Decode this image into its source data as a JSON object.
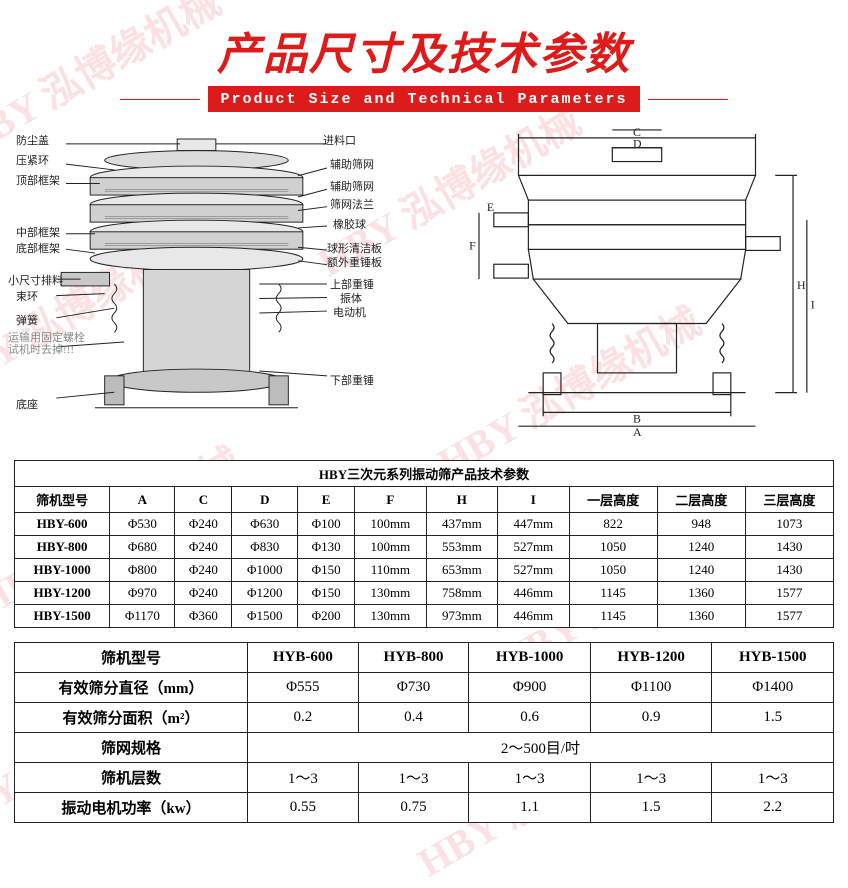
{
  "title": {
    "cn": "产品尺寸及技术参数",
    "en": "Product Size and Technical Parameters",
    "title_color": "#de1b1b",
    "title_fontsize_cn": 44,
    "title_fontsize_en": 15,
    "en_bg": "#de1b1b",
    "en_fg": "#ffffff"
  },
  "watermark": {
    "text": "泓博缘机械",
    "logo": "HBY",
    "color": "#e83c3c",
    "opacity": 0.15,
    "angle_deg": -30
  },
  "diagram_left": {
    "labels": {
      "l0": "防尘盖",
      "l1": "压紧环",
      "l2": "顶部框架",
      "l3": "中部框架",
      "l4": "底部框架",
      "l5": "小尺寸排料",
      "l6": "束环",
      "l7": "弹簧",
      "l8": "运输用固定螺栓\n试机时去掉!!!",
      "l9": "底座",
      "r0": "进料口",
      "r1": "辅助筛网",
      "r2": "辅助筛网",
      "r3": "筛网法兰",
      "r4": "橡胶球",
      "r5": "球形清洁板",
      "r6": "额外重锤板",
      "r7": "上部重锤",
      "r8": "振体",
      "r9": "电动机",
      "r10": "下部重锤"
    },
    "line_color": "#222222",
    "hatch_color": "#3a3a3a"
  },
  "diagram_right": {
    "dim_labels": {
      "d": "D",
      "c": "C",
      "b": "B",
      "a": "A",
      "e": "E",
      "f": "F",
      "h": "H",
      "i": "I"
    },
    "line_color": "#222222"
  },
  "table1": {
    "title": "HBY三次元系列振动筛产品技术参数",
    "columns": [
      "筛机型号",
      "A",
      "C",
      "D",
      "E",
      "F",
      "H",
      "I",
      "一层高度",
      "二层高度",
      "三层高度"
    ],
    "rows": [
      [
        "HBY-600",
        "Φ530",
        "Φ240",
        "Φ630",
        "Φ100",
        "100mm",
        "437mm",
        "447mm",
        "822",
        "948",
        "1073"
      ],
      [
        "HBY-800",
        "Φ680",
        "Φ240",
        "Φ830",
        "Φ130",
        "100mm",
        "553mm",
        "527mm",
        "1050",
        "1240",
        "1430"
      ],
      [
        "HBY-1000",
        "Φ800",
        "Φ240",
        "Φ1000",
        "Φ150",
        "110mm",
        "653mm",
        "527mm",
        "1050",
        "1240",
        "1430"
      ],
      [
        "HBY-1200",
        "Φ970",
        "Φ240",
        "Φ1200",
        "Φ150",
        "130mm",
        "758mm",
        "446mm",
        "1145",
        "1360",
        "1577"
      ],
      [
        "HBY-1500",
        "Φ1170",
        "Φ360",
        "Φ1500",
        "Φ200",
        "130mm",
        "973mm",
        "446mm",
        "1145",
        "1360",
        "1577"
      ]
    ],
    "border_color": "#222222",
    "fontsize": 13
  },
  "table2": {
    "columns": [
      "筛机型号",
      "HYB-600",
      "HYB-800",
      "HYB-1000",
      "HYB-1200",
      "HYB-1500"
    ],
    "rows": [
      {
        "label": "有效筛分直径（mm）",
        "cells": [
          "Φ555",
          "Φ730",
          "Φ900",
          "Φ1100",
          "Φ1400"
        ]
      },
      {
        "label": "有效筛分面积（m²）",
        "cells": [
          "0.2",
          "0.4",
          "0.6",
          "0.9",
          "1.5"
        ]
      },
      {
        "label": "筛网规格",
        "span": "2～500目/吋"
      },
      {
        "label": "筛机层数",
        "cells": [
          "1～3",
          "1～3",
          "1～3",
          "1～3",
          "1～3"
        ]
      },
      {
        "label": "振动电机功率（kw）",
        "cells": [
          "0.55",
          "0.75",
          "1.1",
          "1.5",
          "2.2"
        ]
      }
    ],
    "border_color": "#222222",
    "fontsize": 15
  }
}
